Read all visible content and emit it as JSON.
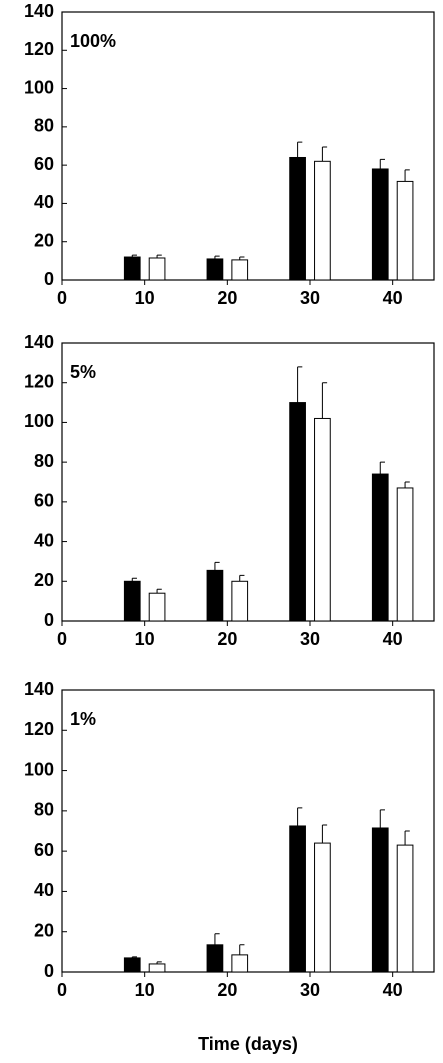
{
  "chart_data": [
    {
      "type": "bar",
      "annotation": "100%",
      "x": [
        10,
        20,
        30,
        40
      ],
      "series": [
        {
          "color": "#000000",
          "values": [
            12,
            11,
            64,
            58
          ],
          "errors": [
            1,
            1.5,
            8,
            5
          ]
        },
        {
          "color": "#ffffff",
          "values": [
            11.5,
            10.5,
            62,
            51.5
          ],
          "errors": [
            1.5,
            1.5,
            7.5,
            6
          ]
        }
      ],
      "xlim": [
        0,
        45
      ],
      "xticks": [
        0,
        10,
        20,
        30,
        40
      ],
      "ylim": [
        0,
        140
      ],
      "yticks": [
        0,
        20,
        40,
        60,
        80,
        100,
        120,
        140
      ]
    },
    {
      "type": "bar",
      "annotation": "5%",
      "x": [
        10,
        20,
        30,
        40
      ],
      "series": [
        {
          "color": "#000000",
          "values": [
            20,
            25.5,
            110,
            74
          ],
          "errors": [
            1.5,
            4,
            18,
            6
          ]
        },
        {
          "color": "#ffffff",
          "values": [
            14,
            20,
            102,
            67
          ],
          "errors": [
            2,
            3,
            18,
            3
          ]
        }
      ],
      "xlim": [
        0,
        45
      ],
      "xticks": [
        0,
        10,
        20,
        30,
        40
      ],
      "ylim": [
        0,
        140
      ],
      "yticks": [
        0,
        20,
        40,
        60,
        80,
        100,
        120,
        140
      ]
    },
    {
      "type": "bar",
      "annotation": "1%",
      "xlabel": "Time (days)",
      "x": [
        10,
        20,
        30,
        40
      ],
      "series": [
        {
          "color": "#000000",
          "values": [
            7,
            13.5,
            72.5,
            71.5
          ],
          "errors": [
            0.5,
            5.5,
            9,
            9
          ]
        },
        {
          "color": "#ffffff",
          "values": [
            4,
            8.5,
            64,
            63
          ],
          "errors": [
            1,
            5,
            9,
            7
          ]
        }
      ],
      "xlim": [
        0,
        45
      ],
      "xticks": [
        0,
        10,
        20,
        30,
        40
      ],
      "ylim": [
        0,
        140
      ],
      "yticks": [
        0,
        20,
        40,
        60,
        80,
        100,
        120,
        140
      ]
    }
  ]
}
